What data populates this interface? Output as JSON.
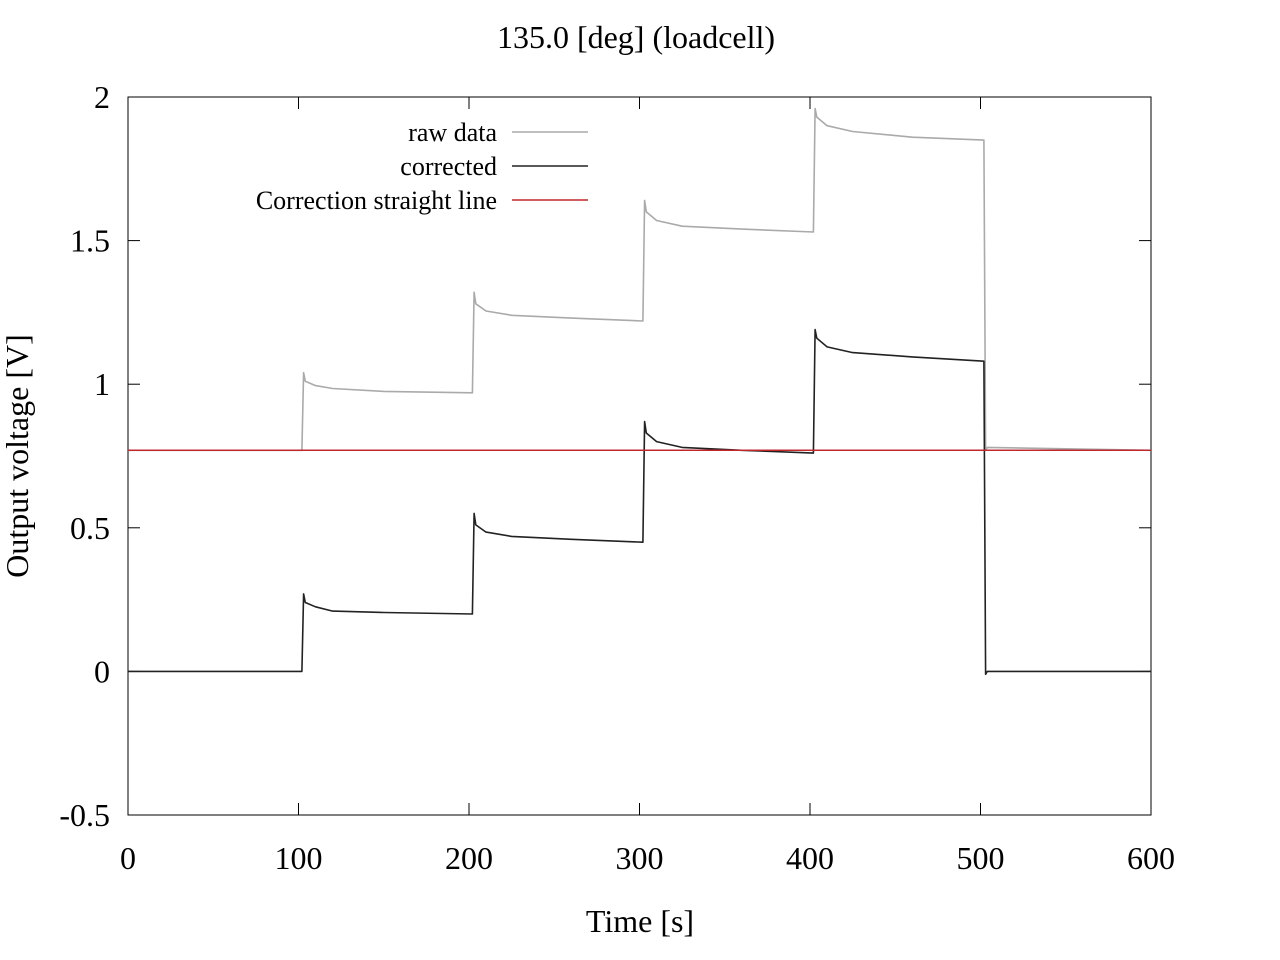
{
  "chart_data": {
    "type": "line",
    "title": "135.0 [deg] (loadcell)",
    "xlabel": "Time [s]",
    "ylabel": "Output voltage [V]",
    "xlim": [
      0,
      600
    ],
    "ylim": [
      -0.5,
      2
    ],
    "xticks": [
      0,
      100,
      200,
      300,
      400,
      500,
      600
    ],
    "xtick_labels": [
      "0",
      "100",
      "200",
      "300",
      "400",
      "500",
      "600"
    ],
    "yticks": [
      -0.5,
      0,
      0.5,
      1,
      1.5,
      2
    ],
    "ytick_labels": [
      "-0.5",
      "0",
      "0.5",
      "1",
      "1.5",
      "2"
    ],
    "grid": false,
    "legend_position": "top-left",
    "series": [
      {
        "name": "raw data",
        "color": "#aaaaaa",
        "x": [
          0,
          102,
          103,
          104,
          110,
          120,
          150,
          202,
          203,
          204,
          210,
          225,
          260,
          302,
          303,
          304,
          310,
          325,
          360,
          402,
          403,
          404,
          410,
          425,
          460,
          502,
          503,
          504,
          600
        ],
        "y": [
          0.77,
          0.77,
          1.04,
          1.01,
          0.995,
          0.985,
          0.975,
          0.97,
          1.32,
          1.28,
          1.255,
          1.24,
          1.23,
          1.22,
          1.64,
          1.6,
          1.57,
          1.55,
          1.54,
          1.53,
          1.96,
          1.93,
          1.9,
          1.88,
          1.86,
          1.85,
          0.77,
          0.78,
          0.77
        ]
      },
      {
        "name": "corrected",
        "color": "#222222",
        "x": [
          0,
          102,
          103,
          104,
          110,
          120,
          150,
          202,
          203,
          204,
          210,
          225,
          260,
          302,
          303,
          304,
          310,
          325,
          360,
          402,
          403,
          404,
          410,
          425,
          460,
          502,
          503,
          504,
          600
        ],
        "y": [
          0,
          0,
          0.27,
          0.24,
          0.225,
          0.21,
          0.205,
          0.2,
          0.55,
          0.51,
          0.485,
          0.47,
          0.46,
          0.45,
          0.87,
          0.83,
          0.8,
          0.78,
          0.77,
          0.76,
          1.19,
          1.16,
          1.13,
          1.11,
          1.095,
          1.08,
          -0.01,
          0,
          0
        ]
      },
      {
        "name": "Correction straight line",
        "color": "#c0282d",
        "x": [
          0,
          600
        ],
        "y": [
          0.77,
          0.77
        ]
      }
    ]
  }
}
